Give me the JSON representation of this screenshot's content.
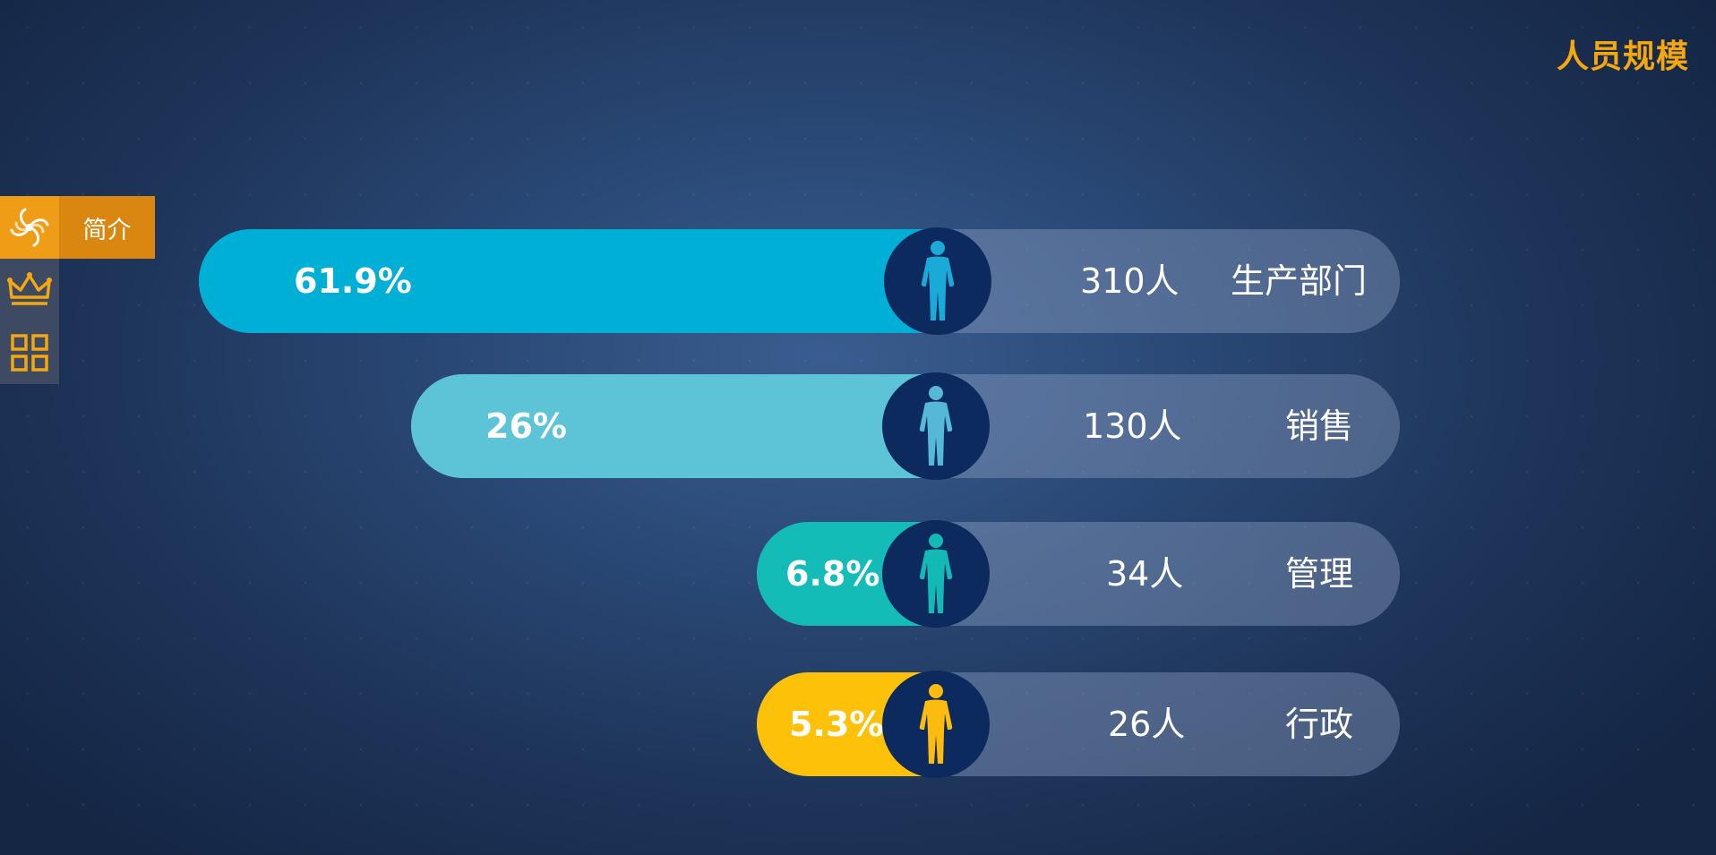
{
  "title": "人员规模",
  "sidebar": {
    "items": [
      {
        "icon": "spiral-icon",
        "label": "简介",
        "active": true
      },
      {
        "icon": "crown-icon",
        "label": "",
        "active": false
      },
      {
        "icon": "grid-icon",
        "label": "",
        "active": false
      }
    ]
  },
  "chart_data": {
    "type": "bar",
    "categories": [
      "生产部门",
      "销售",
      "管理",
      "行政"
    ],
    "values": [
      61.9,
      26,
      6.8,
      5.3
    ],
    "value_labels": [
      "61.9%",
      "26%",
      "6.8%",
      "5.3%"
    ],
    "counts": [
      "310人",
      "130人",
      "34人",
      "26人"
    ],
    "colors": [
      "#00afd6",
      "#5cc4d6",
      "#14bcb8",
      "#fdc10a"
    ],
    "icon_colors": [
      "#1ba9d8",
      "#55b9d6",
      "#13b9b5",
      "#fbbc0f"
    ]
  }
}
